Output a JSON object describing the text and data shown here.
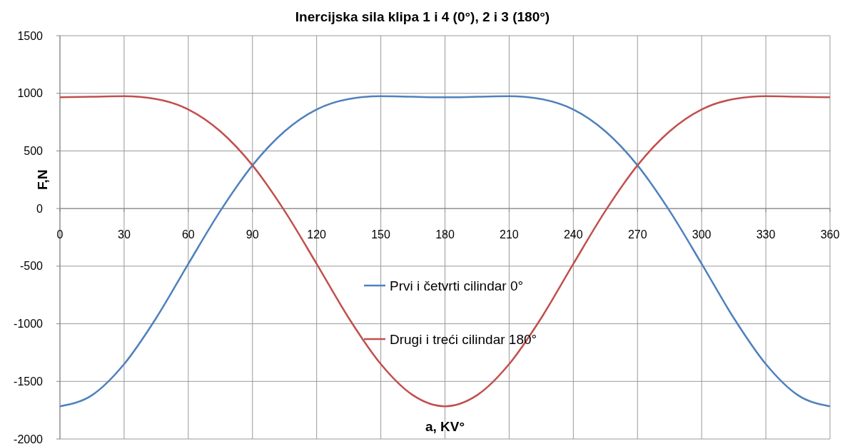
{
  "chart_data": {
    "type": "line",
    "title": "Inercijska sila klipa 1 i 4 (0°),  2 i 3 (180°)",
    "xlabel": "a, KV°",
    "ylabel": "F,N",
    "x": [
      0,
      15,
      30,
      45,
      60,
      75,
      90,
      105,
      120,
      135,
      150,
      165,
      180,
      195,
      210,
      225,
      240,
      255,
      270,
      285,
      300,
      315,
      330,
      345,
      360
    ],
    "series": [
      {
        "name": "Prvi i četvrti cilindar 0°",
        "color": "#4f81bd",
        "values": [
          -1716,
          -1620,
          -1350,
          -950,
          -480,
          -20,
          375,
          670,
          860,
          950,
          975,
          970,
          965,
          970,
          975,
          950,
          860,
          670,
          375,
          -20,
          -480,
          -950,
          -1350,
          -1620,
          -1716
        ]
      },
      {
        "name": "Drugi i treći cilindar 180°",
        "color": "#c0504d",
        "values": [
          965,
          970,
          975,
          950,
          860,
          670,
          375,
          -20,
          -480,
          -950,
          -1350,
          -1620,
          -1716,
          -1620,
          -1350,
          -950,
          -480,
          -20,
          375,
          670,
          860,
          950,
          975,
          970,
          965
        ]
      }
    ],
    "xlim": [
      0,
      360
    ],
    "xticks": [
      0,
      30,
      60,
      90,
      120,
      150,
      180,
      210,
      240,
      270,
      300,
      330,
      360
    ],
    "ylim": [
      -2000,
      1500
    ],
    "yticks": [
      -2000,
      -1500,
      -1000,
      -500,
      0,
      500,
      1000,
      1500
    ],
    "grid": true,
    "legend": "center",
    "marker": "none",
    "line_style": "solid"
  }
}
